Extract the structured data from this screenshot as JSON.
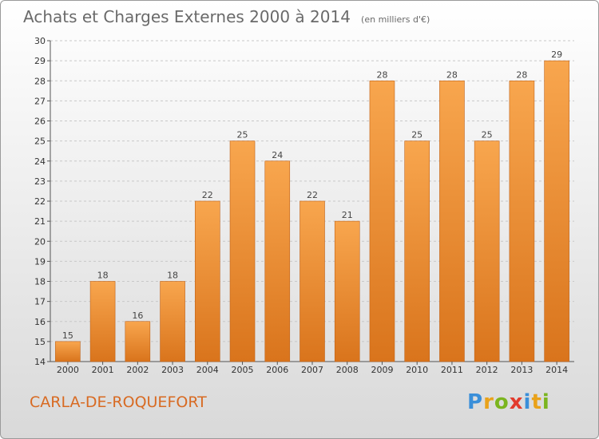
{
  "header": {
    "title": "Achats et Charges Externes 2000 à 2014",
    "unit": "(en milliers d'€)"
  },
  "footer": {
    "commune": "CARLA-DE-ROQUEFORT",
    "logo_letters": [
      {
        "ch": "P",
        "color": "#3a8fd9"
      },
      {
        "ch": "r",
        "color": "#e9a21a"
      },
      {
        "ch": "o",
        "color": "#7bb51f"
      },
      {
        "ch": "x",
        "color": "#e23b2d"
      },
      {
        "ch": "i",
        "color": "#3a8fd9"
      },
      {
        "ch": "t",
        "color": "#e9a21a"
      },
      {
        "ch": "i",
        "color": "#7bb51f"
      }
    ]
  },
  "colors": {
    "bar_top": "#f8a64e",
    "bar_bottom": "#d9741c",
    "bar_edge": "#c0631a",
    "grid": "#c8c8c8"
  },
  "chart_data": {
    "type": "bar",
    "title": "Achats et Charges Externes 2000 à 2014",
    "subtitle": "(en milliers d'€)",
    "xlabel": "",
    "ylabel": "",
    "categories": [
      "2000",
      "2001",
      "2002",
      "2003",
      "2004",
      "2005",
      "2006",
      "2007",
      "2008",
      "2009",
      "2010",
      "2011",
      "2012",
      "2013",
      "2014"
    ],
    "values": [
      15,
      18,
      16,
      18,
      22,
      25,
      24,
      22,
      21,
      28,
      25,
      28,
      25,
      28,
      29
    ],
    "ylim": [
      14,
      30
    ],
    "yticks": [
      14,
      15,
      16,
      17,
      18,
      19,
      20,
      21,
      22,
      23,
      24,
      25,
      26,
      27,
      28,
      29,
      30
    ],
    "grid": true,
    "data_labels": true
  }
}
